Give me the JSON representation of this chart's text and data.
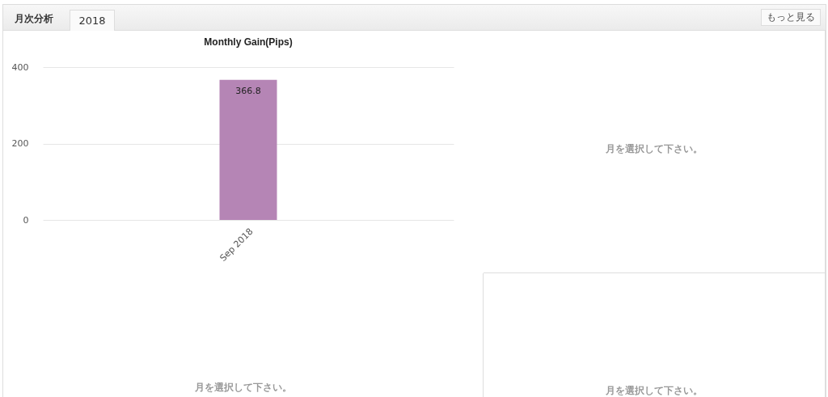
{
  "chart_data": [
    {
      "type": "other",
      "annotations": [
        "月次分析",
        "2018",
        "もっと見る"
      ]
    },
    {
      "type": "bar",
      "title": "Monthly Gain(Pips)",
      "categories": [
        "Sep 2018"
      ],
      "values": [
        366.8
      ],
      "color": "#b585b5",
      "ylim": [
        0,
        400
      ],
      "yticks": [
        0,
        200,
        400
      ],
      "grid": "y",
      "data_labels": true
    },
    {
      "type": "other",
      "annotations": [
        "月を選択して下さい。"
      ]
    },
    {
      "type": "other",
      "annotations": [
        "月を選択して下さい。"
      ]
    },
    {
      "type": "other",
      "annotations": [
        "月を選択して下さい。"
      ]
    }
  ]
}
